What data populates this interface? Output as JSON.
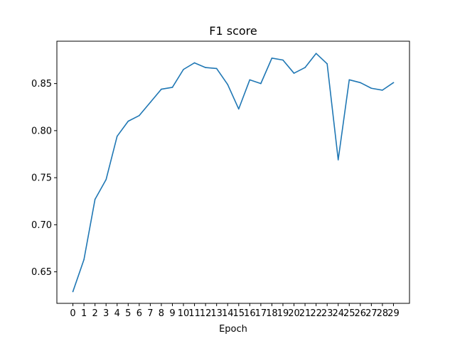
{
  "chart_data": {
    "type": "line",
    "title": "F1 score",
    "xlabel": "Epoch",
    "ylabel": "",
    "x": [
      0,
      1,
      2,
      3,
      4,
      5,
      6,
      7,
      8,
      9,
      10,
      11,
      12,
      13,
      14,
      15,
      16,
      17,
      18,
      19,
      20,
      21,
      22,
      23,
      24,
      25,
      26,
      27,
      28,
      29
    ],
    "xticks": [
      "0",
      "1",
      "2",
      "3",
      "4",
      "5",
      "6",
      "7",
      "8",
      "9",
      "10",
      "11",
      "12",
      "13",
      "14",
      "15",
      "16",
      "17",
      "18",
      "19",
      "20",
      "21",
      "22",
      "23",
      "24",
      "25",
      "26",
      "27",
      "28",
      "29"
    ],
    "yticks": [
      0.65,
      0.7,
      0.75,
      0.8,
      0.85
    ],
    "ytick_labels": [
      "0.65",
      "0.70",
      "0.75",
      "0.80",
      "0.85"
    ],
    "xlim": [
      -1.45,
      30.45
    ],
    "ylim": [
      0.6165,
      0.895
    ],
    "grid": false,
    "series": [
      {
        "color": "#1f77b4",
        "values": [
          0.629,
          0.663,
          0.727,
          0.748,
          0.794,
          0.81,
          0.816,
          0.83,
          0.844,
          0.846,
          0.865,
          0.872,
          0.867,
          0.866,
          0.849,
          0.823,
          0.854,
          0.85,
          0.877,
          0.875,
          0.861,
          0.867,
          0.882,
          0.871,
          0.769,
          0.854,
          0.851,
          0.845,
          0.843,
          0.851
        ]
      }
    ]
  }
}
